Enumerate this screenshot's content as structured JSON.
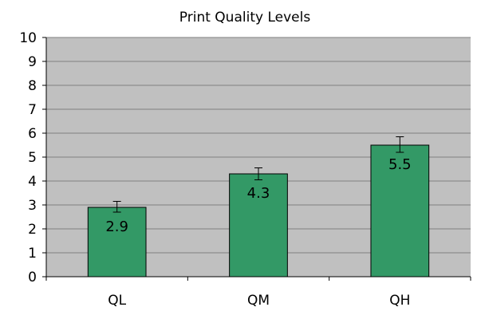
{
  "chart_data": {
    "type": "bar",
    "title": "Print Quality Levels",
    "xlabel": "",
    "ylabel": "",
    "categories": [
      "QL",
      "QM",
      "QH"
    ],
    "values": [
      2.9,
      4.3,
      5.5
    ],
    "value_labels": [
      "2.9",
      "4.3",
      "5.5"
    ],
    "error_bars": [
      {
        "low": 2.7,
        "high": 3.15
      },
      {
        "low": 4.05,
        "high": 4.55
      },
      {
        "low": 5.2,
        "high": 5.85
      }
    ],
    "ylim": [
      0,
      10
    ],
    "yticks": [
      0,
      1,
      2,
      3,
      4,
      5,
      6,
      7,
      8,
      9,
      10
    ],
    "grid": true,
    "legend": "none",
    "colors": {
      "bar": "#339966",
      "bar_stroke": "#000000",
      "plot_background": "#c0c0c0",
      "grid": "#7f7f7f"
    }
  }
}
